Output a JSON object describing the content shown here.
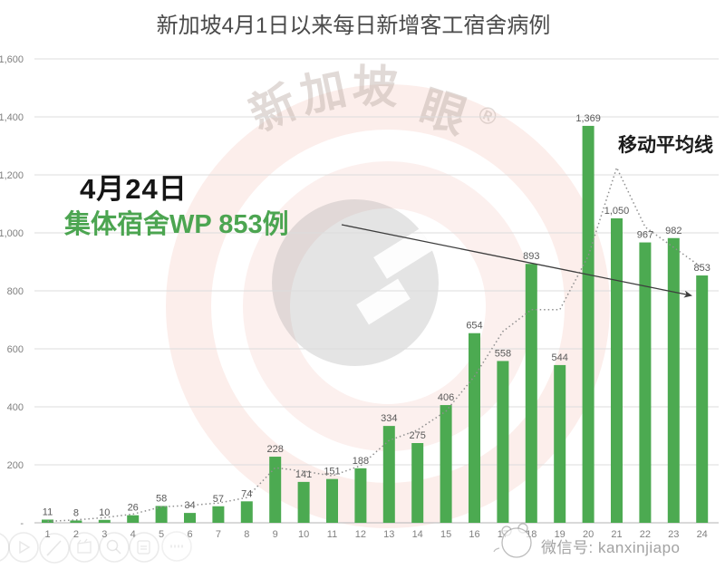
{
  "title": "新加坡4月1日以来每日新增客工宿舍病例",
  "annotation": {
    "date": "4月24日",
    "headline": "集体宿舍WP 853例"
  },
  "ma_label": "移动平均线",
  "watermarks": {
    "brand_chars": [
      "新",
      "加",
      "坡",
      "眼",
      "®"
    ],
    "wechat_text": "微信号: kanxinjiapo"
  },
  "colors": {
    "bar": "#4caa51",
    "bar_label": "#595959",
    "axis_label": "#808080",
    "grid": "#dcdcdc",
    "baseline": "#c2c2c2",
    "title": "#4a4a4a",
    "annotation_date": "#151515",
    "annotation_green": "#4ca551",
    "ma_line": "#8f8f8f",
    "arrow": "#3d3d3d"
  },
  "chart_data": {
    "type": "bar",
    "title": "新加坡4月1日以来每日新增客工宿舍病例",
    "xlabel": "",
    "ylabel": "",
    "categories": [
      "1",
      "2",
      "3",
      "4",
      "5",
      "6",
      "7",
      "8",
      "9",
      "10",
      "11",
      "12",
      "13",
      "14",
      "15",
      "16",
      "17",
      "18",
      "19",
      "20",
      "21",
      "22",
      "23",
      "24"
    ],
    "values": [
      11,
      8,
      10,
      26,
      58,
      34,
      57,
      74,
      228,
      141,
      151,
      188,
      334,
      275,
      406,
      654,
      558,
      893,
      544,
      1369,
      1050,
      967,
      982,
      853
    ],
    "value_labels": [
      "11",
      "8",
      "10",
      "26",
      "58",
      "34",
      "57",
      "74",
      "228",
      "141",
      "151",
      "188",
      "334",
      "275",
      "406",
      "654",
      "558",
      "893",
      "544",
      "1,369",
      "1,050",
      "967",
      "982",
      "853"
    ],
    "moving_average_visual": [
      5,
      10,
      18,
      30,
      55,
      60,
      68,
      87,
      190,
      178,
      162,
      197,
      284,
      320,
      385,
      505,
      660,
      735,
      735,
      920,
      1225,
      1020,
      950,
      880
    ],
    "y_ticks": [
      {
        "v": 1600,
        "label": "1,600"
      },
      {
        "v": 1400,
        "label": "1,400"
      },
      {
        "v": 1200,
        "label": "1,200"
      },
      {
        "v": 1000,
        "label": "1,000"
      },
      {
        "v": 800,
        "label": "800"
      },
      {
        "v": 600,
        "label": "600"
      },
      {
        "v": 400,
        "label": "400"
      },
      {
        "v": 200,
        "label": "200"
      },
      {
        "v": 0,
        "label": "-"
      }
    ],
    "ylim": [
      0,
      1600
    ],
    "grid": true,
    "legend_position": "none",
    "overlay_note": "dotted line = moving average (移动平均线); solid arrow from annotation text to the Apr 24 bar (853)"
  },
  "toolbar_icons": [
    "play-icon",
    "pencil-icon",
    "clapper-icon",
    "magnifier-icon",
    "document-icon",
    "more-icon"
  ]
}
